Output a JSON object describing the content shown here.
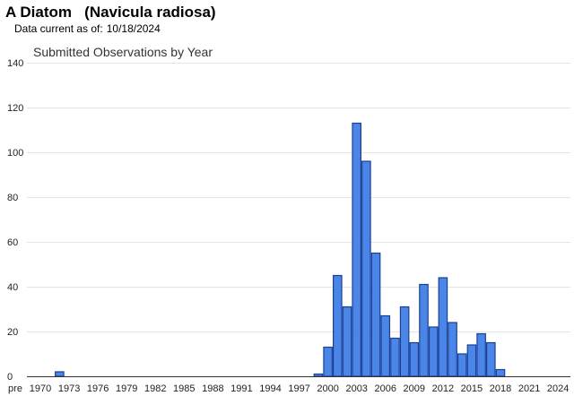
{
  "header": {
    "title": "A Diatom   (Navicula radiosa)",
    "data_current_label": "Data current as of:",
    "data_current_date": "10/18/2024"
  },
  "chart_data": {
    "type": "bar",
    "title": "Submitted Observations by Year",
    "xlabel": "",
    "ylabel": "",
    "ylim": [
      0,
      140
    ],
    "yticks": [
      0,
      20,
      40,
      60,
      80,
      100,
      120,
      140
    ],
    "grid": true,
    "categories": [
      "pre",
      "1970",
      "1971",
      "1972",
      "1973",
      "1974",
      "1975",
      "1976",
      "1977",
      "1978",
      "1979",
      "1980",
      "1981",
      "1982",
      "1983",
      "1984",
      "1985",
      "1986",
      "1987",
      "1988",
      "1989",
      "1990",
      "1991",
      "1992",
      "1993",
      "1994",
      "1995",
      "1996",
      "1997",
      "1998",
      "1999",
      "2000",
      "2001",
      "2002",
      "2003",
      "2004",
      "2005",
      "2006",
      "2007",
      "2008",
      "2009",
      "2010",
      "2011",
      "2012",
      "2013",
      "2014",
      "2015",
      "2016",
      "2017",
      "2018",
      "2019",
      "2020",
      "2021",
      "2022",
      "2023",
      "2024"
    ],
    "values": [
      0,
      0,
      0,
      2,
      0,
      0,
      0,
      0,
      0,
      0,
      0,
      0,
      0,
      0,
      0,
      0,
      0,
      0,
      0,
      0,
      0,
      0,
      0,
      0,
      0,
      0,
      0,
      0,
      0,
      0,
      1,
      13,
      45,
      31,
      113,
      96,
      55,
      27,
      17,
      31,
      15,
      41,
      22,
      44,
      24,
      10,
      14,
      19,
      15,
      3,
      0,
      0,
      0,
      0,
      0,
      0
    ],
    "x_tick_labels": [
      "pre",
      "1970",
      "1973",
      "1976",
      "1979",
      "1982",
      "1985",
      "1988",
      "1991",
      "1994",
      "1997",
      "2000",
      "2003",
      "2006",
      "2009",
      "2012",
      "2015",
      "2018",
      "2021",
      "2024"
    ]
  }
}
